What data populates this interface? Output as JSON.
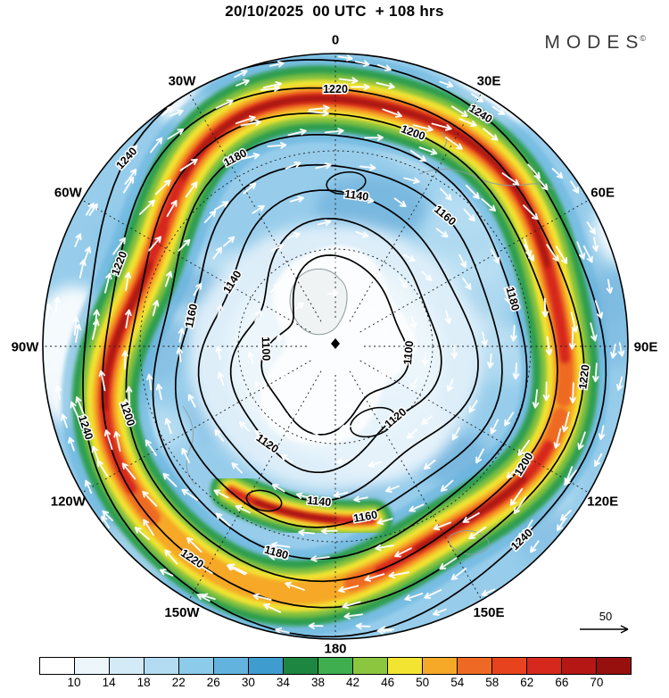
{
  "header": {
    "title": "20/10/2025  00 UTC  + 108 hrs",
    "brand": "MODES",
    "brand_mark": "©"
  },
  "chart_data": {
    "type": "heatmap",
    "title": "20/10/2025 00 UTC + 108 hrs",
    "projection": "north-polar-stereographic",
    "description": "Hemispheric chart: wind speed shading (jet stream in green/yellow/orange/red over blue background), black height contours labelled 1100-1240, white wind direction arrows, dashed lat/lon graticule",
    "longitude_labels": [
      "0",
      "30E",
      "60E",
      "90E",
      "120E",
      "150E",
      "180",
      "150W",
      "120W",
      "90W",
      "60W",
      "30W"
    ],
    "contour_levels": [
      1100,
      1120,
      1140,
      1160,
      1180,
      1200,
      1220,
      1240
    ],
    "colorbar": {
      "tick_labels": [
        "10",
        "14",
        "18",
        "22",
        "26",
        "30",
        "34",
        "38",
        "42",
        "46",
        "50",
        "54",
        "58",
        "62",
        "66",
        "70"
      ],
      "colors": [
        "#ffffff",
        "#edf6fb",
        "#d4eaf7",
        "#b3dcf2",
        "#8ccbe9",
        "#62b4de",
        "#3e9ccf",
        "#1d8641",
        "#3fae4e",
        "#8cc63f",
        "#f2e431",
        "#f6a827",
        "#ee6a24",
        "#e8431f",
        "#d6281c",
        "#b51714",
        "#97100d"
      ],
      "legend_note": "shaded wind speed"
    },
    "wind_reference": {
      "label": "50"
    }
  }
}
